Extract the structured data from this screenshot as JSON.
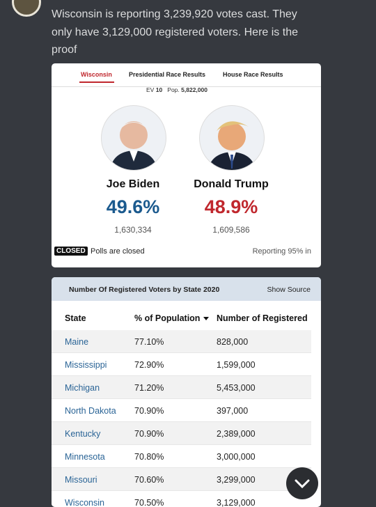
{
  "post": {
    "text": "Wisconsin is reporting 3,239,920 votes cast. They only have 3,129,000 registered voters. Here is the proof"
  },
  "results_card": {
    "tabs": [
      "Wisconsin",
      "Presidential Race Results",
      "House Race Results"
    ],
    "ev_label": "EV",
    "ev": "10",
    "pop_label": "Pop.",
    "pop": "5,822,000",
    "candidates": [
      {
        "name": "Joe Biden",
        "percent": "49.6%",
        "votes": "1,630,334"
      },
      {
        "name": "Donald Trump",
        "percent": "48.9%",
        "votes": "1,609,586"
      }
    ],
    "status_badge": "CLOSED",
    "status": "Polls are closed",
    "reporting": "Reporting 95% in"
  },
  "table_card": {
    "title": "Number Of Registered Voters by State 2020",
    "link": "Show Source",
    "table": {
      "headers": [
        "State",
        "% of Population",
        "Number of Registered"
      ],
      "rows": [
        [
          "Maine",
          "77.10%",
          "828,000"
        ],
        [
          "Mississippi",
          "72.90%",
          "1,599,000"
        ],
        [
          "Michigan",
          "71.20%",
          "5,453,000"
        ],
        [
          "North Dakota",
          "70.90%",
          "397,000"
        ],
        [
          "Kentucky",
          "70.90%",
          "2,389,000"
        ],
        [
          "Minnesota",
          "70.80%",
          "3,000,000"
        ],
        [
          "Missouri",
          "70.60%",
          "3,299,000"
        ],
        [
          "Wisconsin",
          "70.50%",
          "3,129,000"
        ]
      ]
    }
  }
}
